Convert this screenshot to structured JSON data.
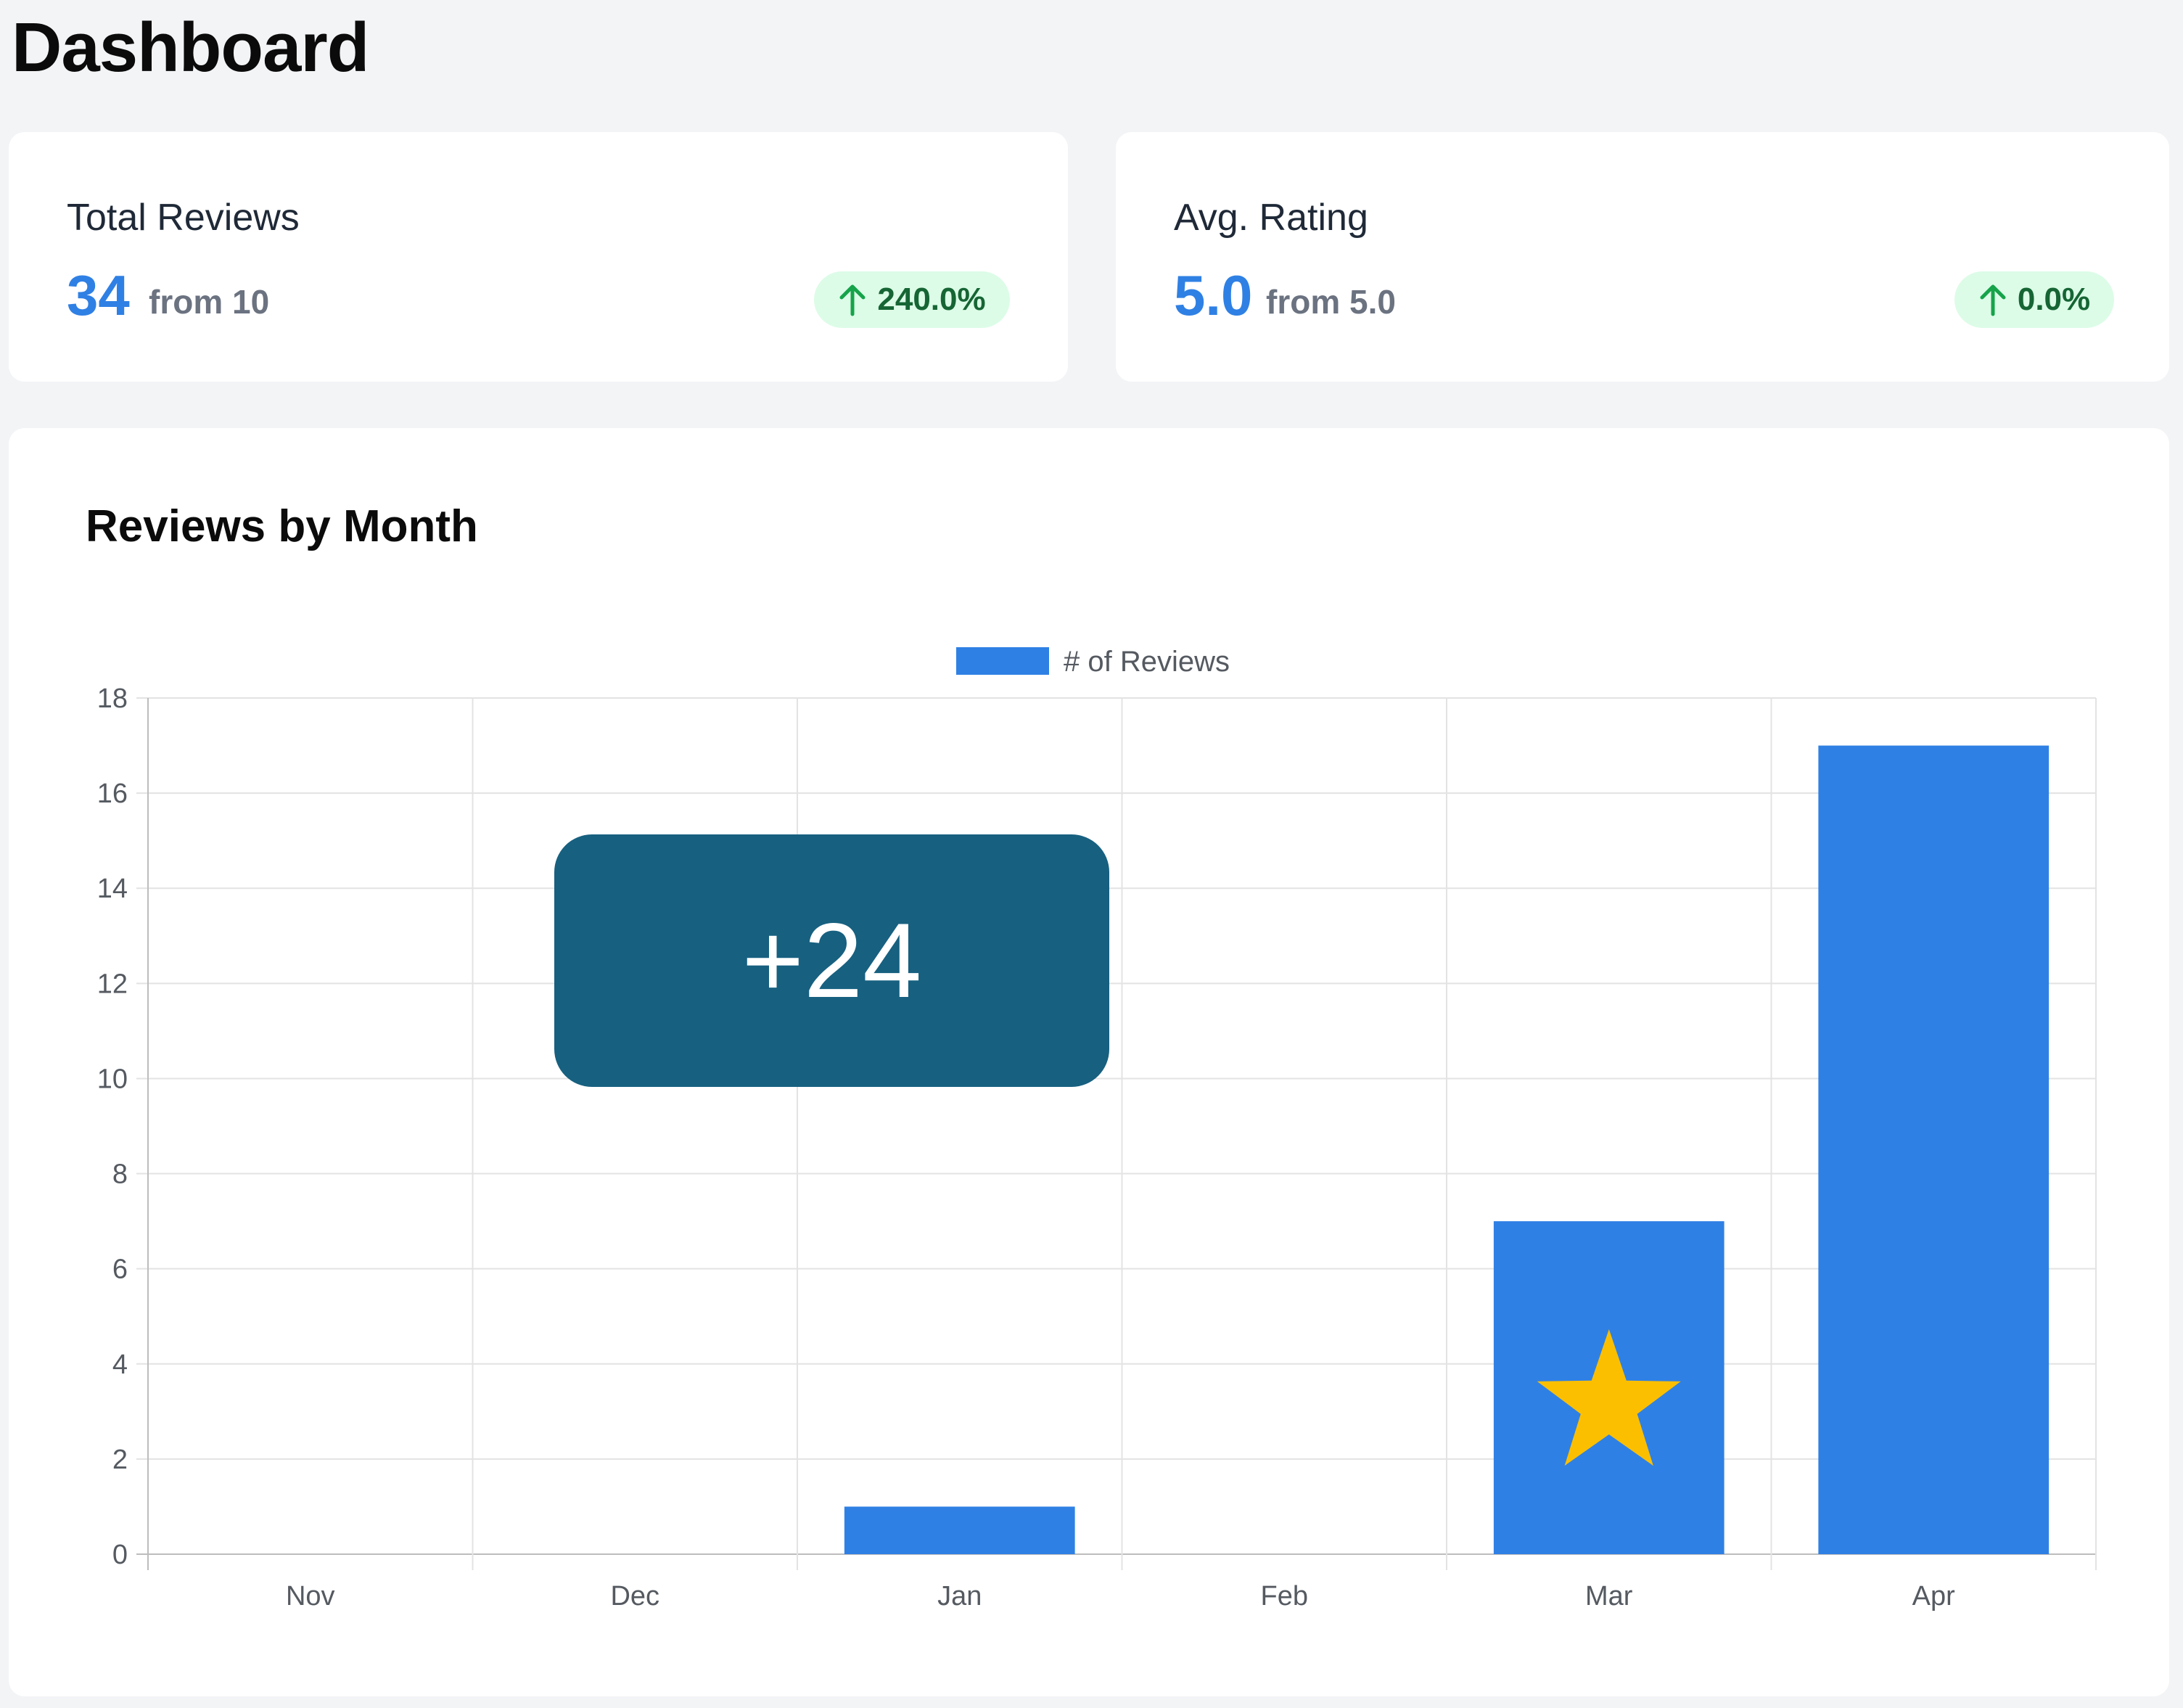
{
  "header": {
    "title": "Dashboard"
  },
  "stats": {
    "total_reviews": {
      "label": "Total Reviews",
      "value": "34",
      "from": "from 10",
      "change": "240.0%",
      "trend_icon": "arrow-up-icon"
    },
    "avg_rating": {
      "label": "Avg. Rating",
      "value": "5.0",
      "from": "from 5.0",
      "change": "0.0%",
      "trend_icon": "arrow-up-icon"
    }
  },
  "colors": {
    "accent": "#2f80e4",
    "badge_bg": "#dcfce7",
    "badge_text": "#166534",
    "arrow": "#16a34a",
    "callout_bg": "#176080",
    "star": "#fbbf00"
  },
  "chart_section": {
    "title": "Reviews by Month",
    "callout": "+24",
    "overlay_icon": "star-icon"
  },
  "chart_data": {
    "type": "bar",
    "categories": [
      "Nov",
      "Dec",
      "Jan",
      "Feb",
      "Mar",
      "Apr"
    ],
    "series": [
      {
        "name": "# of Reviews",
        "values": [
          0,
          0,
          1,
          0,
          7,
          17
        ],
        "color": "#2f80e4"
      }
    ],
    "ylim": [
      0,
      18
    ],
    "yticks": [
      0,
      2,
      4,
      6,
      8,
      10,
      12,
      14,
      16,
      18
    ],
    "grid": true,
    "legend": "top-center"
  }
}
